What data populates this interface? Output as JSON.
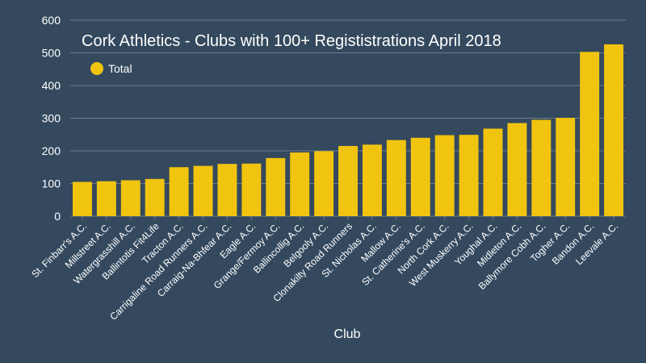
{
  "colors": {
    "background": "#34495e",
    "bar": "#f1c40f",
    "grid": "#6c7a89",
    "text": "#ffffff"
  },
  "chart_data": {
    "type": "bar",
    "title": "Cork Athletics - Clubs with 100+ Regististrations April 2018",
    "xlabel": "Club",
    "ylabel": "",
    "ylim": [
      0,
      600
    ],
    "yticks": [
      0,
      100,
      200,
      300,
      400,
      500,
      600
    ],
    "grid": true,
    "legend_position": "top-left",
    "categories": [
      "St. Finbarr's A.C.",
      "Millstreet A.C.",
      "Watergrasshill A.C.",
      "Ballintotis Fit4Life",
      "Tracton A.C.",
      "Carrigaline Road Runners A.C.",
      "Carraig-Na-Bhfear A.C.",
      "Eagle A.C.",
      "Grange/Fermoy A.C.",
      "Ballincollig A.C.",
      "Belgooly A.C.",
      "Clonakilty Road Runners",
      "St. Nicholas A.C.",
      "Mallow A.C.",
      "St. Catherine's A.C.",
      "North Cork A.C.",
      "West Muskerry A.C.",
      "Youghal A.C.",
      "Midleton A.C.",
      "Ballymore Cobh A.C.",
      "Togher A.C.",
      "Bandon A.C.",
      "Leevale A.C."
    ],
    "series": [
      {
        "name": "Total",
        "values": [
          105,
          107,
          110,
          114,
          150,
          154,
          160,
          161,
          178,
          195,
          199,
          215,
          219,
          233,
          240,
          248,
          249,
          268,
          285,
          295,
          301,
          503,
          526
        ]
      }
    ]
  }
}
